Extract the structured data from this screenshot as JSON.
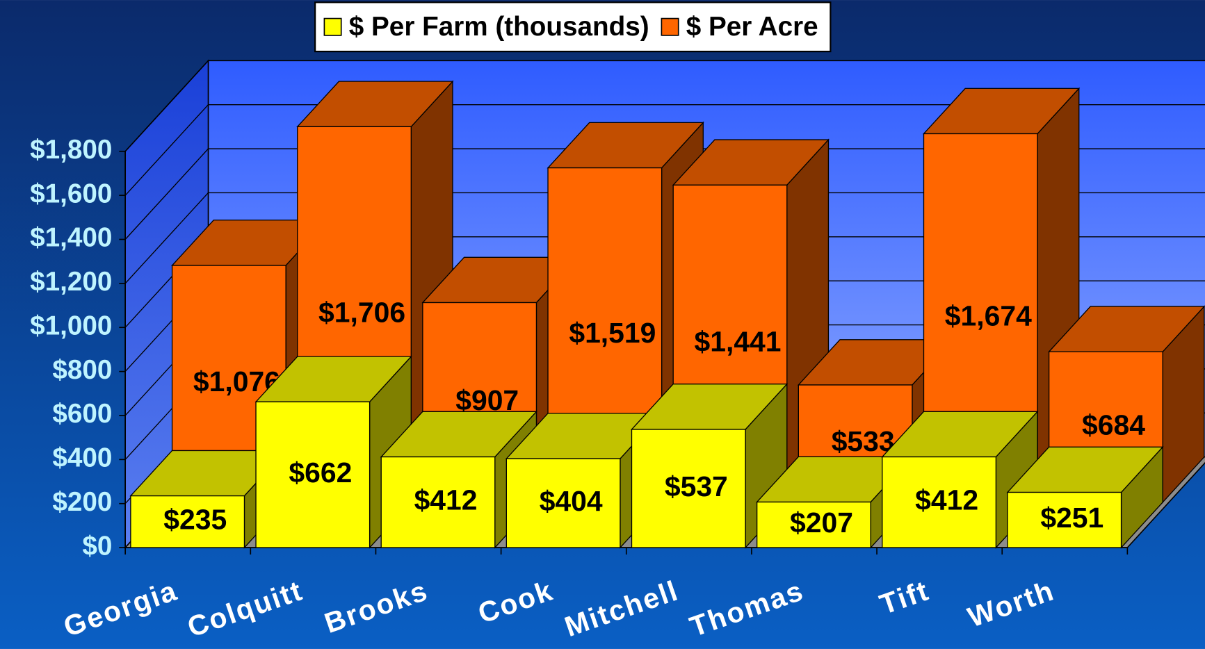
{
  "chart_data": {
    "type": "bar3d",
    "categories": [
      "Georgia",
      "Colquitt",
      "Brooks",
      "Cook",
      "Mitchell",
      "Thomas",
      "Tift",
      "Worth"
    ],
    "series": [
      {
        "name": "$ Per Farm (thousands)",
        "color": "#ffff00",
        "values": [
          235,
          662,
          412,
          404,
          537,
          207,
          412,
          251
        ],
        "value_labels": [
          "$235",
          "$662",
          "$412",
          "$404",
          "$537",
          "$207",
          "$412",
          "$251"
        ]
      },
      {
        "name": "$ Per Acre",
        "color": "#ff6600",
        "values": [
          1076,
          1706,
          907,
          1519,
          1441,
          533,
          1674,
          684
        ],
        "value_labels": [
          "$1,076",
          "$1,706",
          "$907",
          "$1,519",
          "$1,441",
          "$533",
          "$1,674",
          "$684"
        ]
      }
    ],
    "ylim": [
      0,
      1800
    ],
    "yticks": [
      {
        "value": 0,
        "label": "$0"
      },
      {
        "value": 200,
        "label": "$200"
      },
      {
        "value": 400,
        "label": "$400"
      },
      {
        "value": 600,
        "label": "$600"
      },
      {
        "value": 800,
        "label": "$800"
      },
      {
        "value": 1000,
        "label": "$1,000"
      },
      {
        "value": 1200,
        "label": "$1,200"
      },
      {
        "value": 1400,
        "label": "$1,400"
      },
      {
        "value": 1600,
        "label": "$1,600"
      },
      {
        "value": 1800,
        "label": "$1,800"
      }
    ],
    "grid": true,
    "legend": "top"
  }
}
